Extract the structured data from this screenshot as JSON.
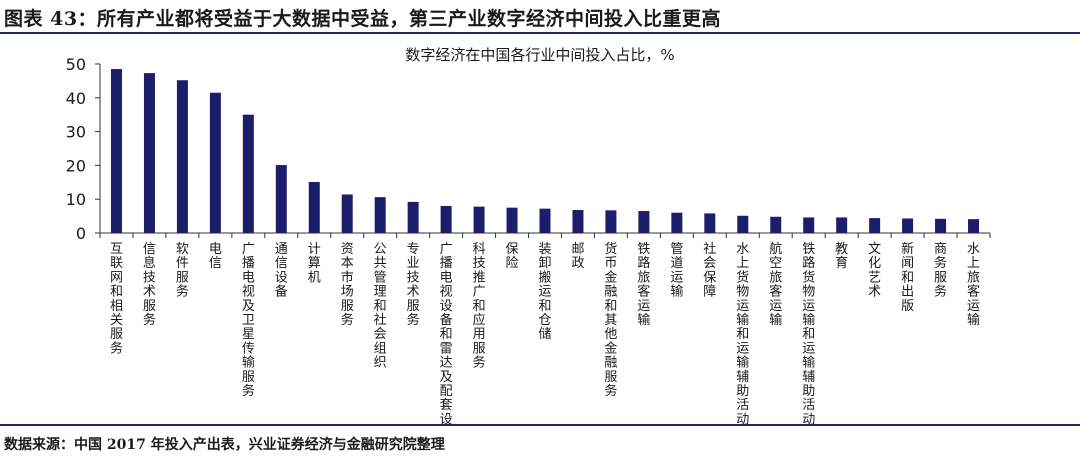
{
  "header": {
    "title": "图表 43：所有产业都将受益于大数据中受益，第三产业数字经济中间投入比重更高"
  },
  "source": "数据来源：中国 2017 年投入产出表，兴业证券经济与金融研究院整理",
  "chart_data": {
    "type": "bar",
    "title": "数字经济在中国各行业中间投入占比，%",
    "xlabel": "",
    "ylabel": "",
    "ylim": [
      0,
      50
    ],
    "yticks": [
      0,
      10,
      20,
      30,
      40,
      50
    ],
    "grid": false,
    "legend": "none",
    "bar_color": "#1c1d6b",
    "categories": [
      "互联网和相关服务",
      "信息技术服务",
      "软件服务",
      "电信",
      "广播电视及卫星传输服务",
      "通信设备",
      "计算机",
      "资本市场服务",
      "公共管理和社会组织",
      "专业技术服务",
      "广播电视设备和雷达及配套设备",
      "科技推广和应用服务",
      "保险",
      "装卸搬运和仓储",
      "邮政",
      "货币金融和其他金融服务",
      "铁路旅客运输",
      "管道运输",
      "社会保障",
      "水上货物运输和运输辅助活动",
      "航空旅客运输",
      "铁路货物运输和运输辅助活动",
      "教育",
      "文化艺术",
      "新闻和出版",
      "商务服务",
      "水上旅客运输"
    ],
    "values": [
      48.5,
      47.3,
      45.2,
      41.5,
      35.0,
      20.1,
      15.1,
      11.4,
      10.6,
      9.2,
      8.0,
      7.8,
      7.5,
      7.2,
      6.8,
      6.7,
      6.5,
      6.0,
      5.8,
      5.1,
      4.8,
      4.6,
      4.6,
      4.4,
      4.3,
      4.2,
      4.1
    ]
  }
}
